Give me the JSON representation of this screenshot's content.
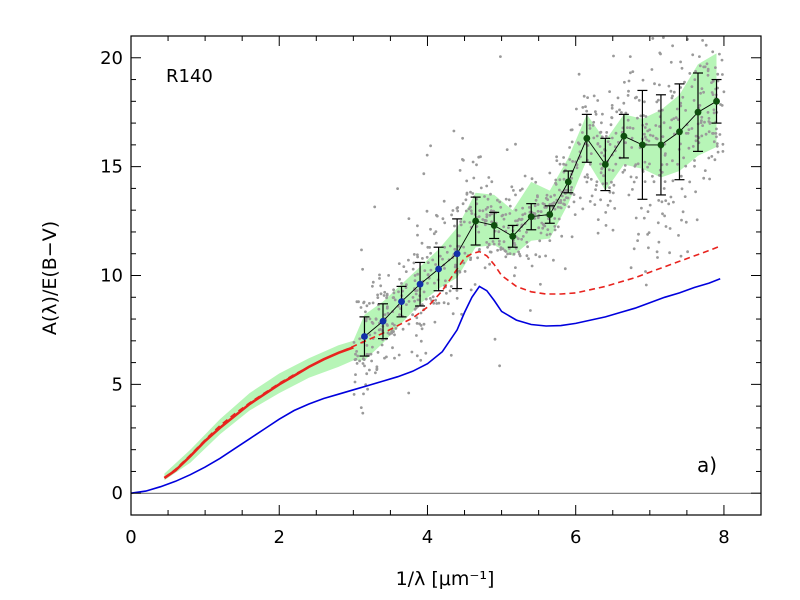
{
  "chart_data": {
    "type": "scatter",
    "title": "",
    "annotations": {
      "region": "R140",
      "panel": "a)"
    },
    "xlabel": "1/λ [μm⁻¹]",
    "ylabel": "A(λ)/E(B−V)",
    "xlim": [
      0,
      8.5
    ],
    "ylim": [
      -1,
      21
    ],
    "x_ticks": [
      0,
      2,
      4,
      6,
      8
    ],
    "y_ticks": [
      0,
      5,
      10,
      15,
      20
    ],
    "x_tick_labels": [
      "0",
      "2",
      "4",
      "6",
      "8"
    ],
    "y_tick_labels": [
      "0",
      "5",
      "10",
      "15",
      "20"
    ],
    "grid": false,
    "legend": "none",
    "colors": {
      "band": "#b7f5b7",
      "blue_curve": "#0000dd",
      "red_curve": "#e8231e",
      "points_blue": "#1230a8",
      "points_green": "#0f4f0f",
      "scatter": "#9a9a9a",
      "errorbar": "#000000",
      "zero_line": "#000000"
    },
    "series": [
      {
        "role": "blue-solid-curve",
        "x": [
          0.0,
          0.2,
          0.4,
          0.6,
          0.8,
          1.0,
          1.2,
          1.4,
          1.6,
          1.8,
          2.0,
          2.2,
          2.4,
          2.6,
          2.8,
          3.0,
          3.2,
          3.4,
          3.6,
          3.8,
          4.0,
          4.2,
          4.4,
          4.5,
          4.6,
          4.7,
          4.8,
          4.9,
          5.0,
          5.2,
          5.4,
          5.6,
          5.8,
          6.0,
          6.2,
          6.4,
          6.6,
          6.8,
          7.0,
          7.2,
          7.4,
          7.6,
          7.8,
          7.95
        ],
        "y": [
          0.0,
          0.1,
          0.3,
          0.55,
          0.85,
          1.2,
          1.6,
          2.05,
          2.5,
          2.95,
          3.4,
          3.8,
          4.1,
          4.35,
          4.55,
          4.75,
          4.95,
          5.15,
          5.35,
          5.6,
          5.95,
          6.5,
          7.5,
          8.3,
          9.0,
          9.5,
          9.3,
          8.85,
          8.35,
          7.95,
          7.75,
          7.68,
          7.7,
          7.8,
          7.95,
          8.1,
          8.3,
          8.5,
          8.75,
          9.0,
          9.2,
          9.45,
          9.65,
          9.85
        ]
      },
      {
        "role": "red-dashed-curve",
        "x": [
          0.45,
          0.6,
          0.8,
          1.0,
          1.2,
          1.4,
          1.6,
          1.8,
          2.0,
          2.2,
          2.4,
          2.6,
          2.8,
          3.0,
          3.2,
          3.4,
          3.6,
          3.8,
          4.0,
          4.2,
          4.4,
          4.5,
          4.6,
          4.7,
          4.8,
          4.9,
          5.0,
          5.2,
          5.4,
          5.6,
          5.8,
          6.0,
          6.2,
          6.4,
          6.6,
          6.8,
          7.0,
          7.2,
          7.4,
          7.6,
          7.8,
          7.95
        ],
        "y": [
          0.7,
          1.1,
          1.75,
          2.45,
          3.1,
          3.65,
          4.15,
          4.6,
          5.05,
          5.45,
          5.8,
          6.15,
          6.45,
          6.75,
          7.05,
          7.35,
          7.7,
          8.05,
          8.55,
          9.3,
          10.3,
          10.8,
          11.0,
          11.1,
          10.9,
          10.5,
          10.0,
          9.5,
          9.25,
          9.15,
          9.15,
          9.2,
          9.35,
          9.5,
          9.7,
          9.9,
          10.15,
          10.4,
          10.65,
          10.9,
          11.15,
          11.35
        ]
      },
      {
        "role": "red-solid-curve",
        "x": [
          0.45,
          0.6,
          0.8,
          1.0,
          1.2,
          1.4,
          1.6,
          1.8,
          2.0,
          2.2,
          2.4,
          2.6,
          2.8,
          3.0
        ],
        "y": [
          0.7,
          1.05,
          1.7,
          2.4,
          3.0,
          3.55,
          4.1,
          4.55,
          5.0,
          5.4,
          5.8,
          6.15,
          6.45,
          6.7
        ]
      },
      {
        "role": "green-band",
        "x": [
          0.45,
          0.8,
          1.2,
          1.6,
          2.0,
          2.4,
          2.8,
          3.0,
          3.15,
          3.4,
          3.65,
          3.9,
          4.15,
          4.4,
          4.65,
          4.9,
          5.15,
          5.4,
          5.65,
          5.9,
          6.15,
          6.4,
          6.65,
          6.9,
          7.15,
          7.4,
          7.65,
          7.9
        ],
        "upper": [
          0.9,
          2.0,
          3.4,
          4.6,
          5.5,
          6.2,
          6.8,
          7.0,
          8.2,
          8.8,
          9.6,
          10.4,
          11.2,
          12.2,
          13.8,
          13.7,
          13.0,
          14.3,
          13.9,
          15.4,
          17.4,
          16.2,
          17.4,
          17.2,
          17.6,
          18.3,
          19.7,
          20.2
        ],
        "lower": [
          0.6,
          1.4,
          2.7,
          3.8,
          4.6,
          5.3,
          5.8,
          6.1,
          6.1,
          6.9,
          7.8,
          8.7,
          9.4,
          9.9,
          11.3,
          11.4,
          10.9,
          11.6,
          11.7,
          13.3,
          15.3,
          13.9,
          15.1,
          14.9,
          14.5,
          14.8,
          15.5,
          15.9
        ]
      },
      {
        "role": "binned-means-blue",
        "x": [
          3.15,
          3.4,
          3.65,
          3.9,
          4.15,
          4.4
        ],
        "y": [
          7.2,
          7.9,
          8.8,
          9.6,
          10.3,
          11.0
        ],
        "yerr": [
          0.9,
          0.8,
          0.7,
          1.0,
          1.0,
          1.6
        ]
      },
      {
        "role": "binned-means-green",
        "x": [
          4.65,
          4.9,
          5.15,
          5.4,
          5.65,
          5.9,
          6.15,
          6.4,
          6.65,
          6.9,
          7.15,
          7.4,
          7.65,
          7.9
        ],
        "y": [
          12.5,
          12.3,
          11.8,
          12.7,
          12.8,
          14.3,
          16.3,
          15.1,
          16.4,
          16.0,
          16.0,
          16.6,
          17.5,
          18.0
        ],
        "yerr": [
          1.1,
          0.6,
          0.5,
          0.6,
          0.4,
          0.5,
          1.1,
          1.2,
          1.0,
          2.5,
          2.3,
          2.2,
          1.8,
          1.0
        ]
      }
    ],
    "scatter_points": {
      "description": "individual sight-line measurements (gray dots), clustered around the binned means between x=3.0 and x=8.0",
      "approx_count": 900,
      "x_range": [
        3.0,
        8.0
      ]
    }
  }
}
